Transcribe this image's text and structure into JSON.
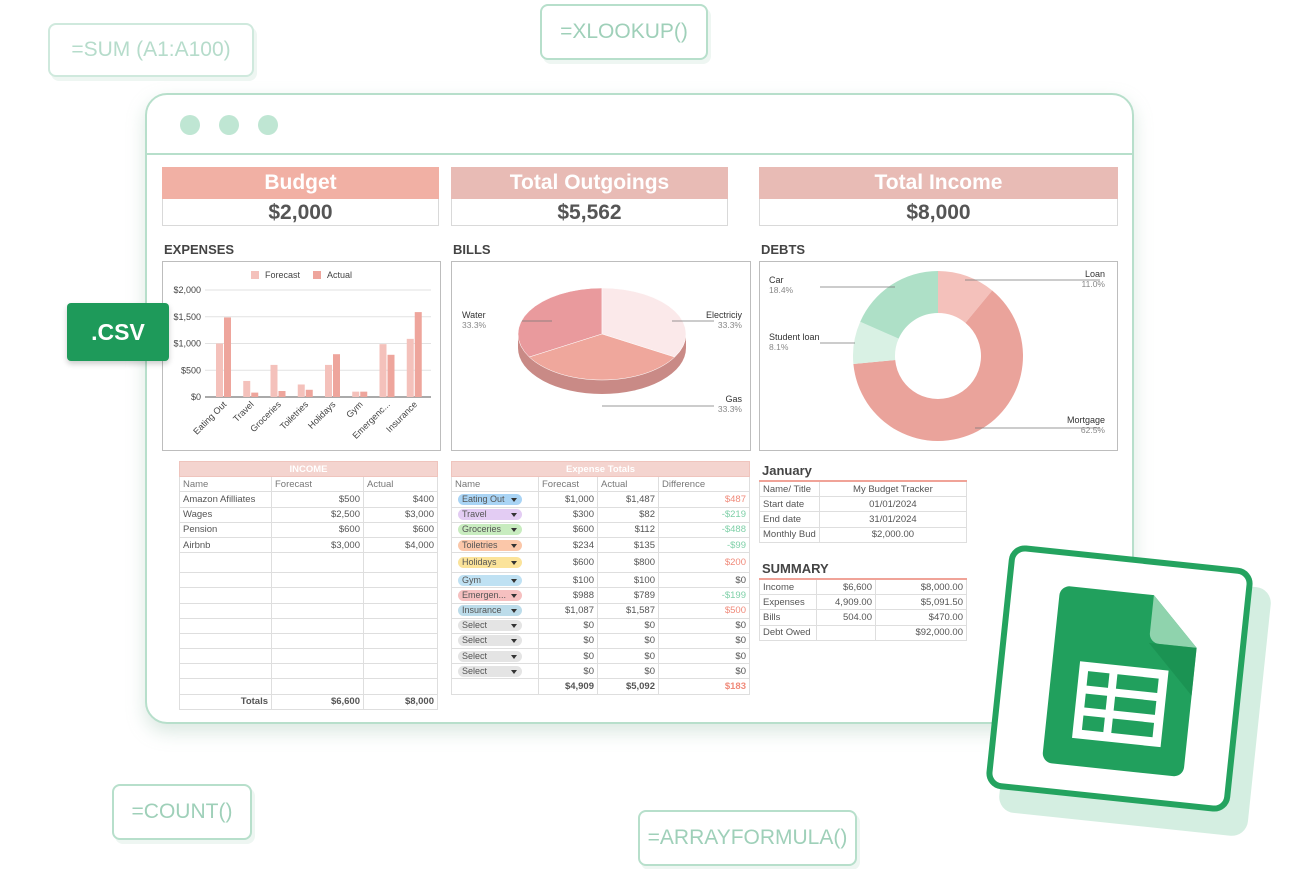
{
  "formulas": {
    "sum": "=SUM (A1:A100)",
    "xlookup": "=XLOOKUP()",
    "count": "=COUNT()",
    "arrayformula": "=ARRAYFORMULA()"
  },
  "csv_badge": ".CSV",
  "cards": [
    {
      "title": "Budget",
      "value": "$2,000"
    },
    {
      "title": "Total Outgoings",
      "value": "$5,562"
    },
    {
      "title": "Total Income",
      "value": "$8,000"
    }
  ],
  "sections": {
    "expenses": "EXPENSES",
    "bills": "BILLS",
    "debts": "DEBTS"
  },
  "chart_data": [
    {
      "type": "bar",
      "title": "EXPENSES",
      "legend": [
        "Forecast",
        "Actual"
      ],
      "legend_position": "top",
      "categories": [
        "Eating Out",
        "Travel",
        "Groceries",
        "Toiletries",
        "Holidays",
        "Gym",
        "Emergenc...",
        "Insurance"
      ],
      "series": [
        {
          "name": "Forecast",
          "values": [
            1000,
            300,
            600,
            234,
            600,
            100,
            988,
            1087
          ],
          "color": "#f4c1bb"
        },
        {
          "name": "Actual",
          "values": [
            1487,
            82,
            112,
            135,
            800,
            100,
            789,
            1587
          ],
          "color": "#eea59c"
        }
      ],
      "yticks": [
        "$0",
        "$500",
        "$1,000",
        "$1,500",
        "$2,000"
      ],
      "ylim": [
        0,
        2000
      ]
    },
    {
      "type": "pie",
      "title": "BILLS",
      "slices": [
        {
          "label": "Water",
          "pct": "33.3%",
          "value": 33.3,
          "color": "#e99a9d"
        },
        {
          "label": "Electriciy",
          "pct": "33.3%",
          "value": 33.3,
          "color": "#fbe9ea"
        },
        {
          "label": "Gas",
          "pct": "33.3%",
          "value": 33.3,
          "color": "#efa79c"
        }
      ]
    },
    {
      "type": "pie",
      "title": "DEBTS",
      "donut": true,
      "slices": [
        {
          "label": "Loan",
          "pct": "11.0%",
          "value": 11.0,
          "color": "#f4c1bb"
        },
        {
          "label": "Mortgage",
          "pct": "62.5%",
          "value": 62.5,
          "color": "#eaa39b"
        },
        {
          "label": "Student loan",
          "pct": "8.1%",
          "value": 8.1,
          "color": "#d9f1e4"
        },
        {
          "label": "Car",
          "pct": "18.4%",
          "value": 18.4,
          "color": "#aee0c7"
        }
      ]
    }
  ],
  "income": {
    "title": "INCOME",
    "headers": [
      "Name",
      "Forecast",
      "Actual"
    ],
    "rows": [
      [
        "Amazon Afilliates",
        "$500",
        "$400"
      ],
      [
        "Wages",
        "$2,500",
        "$3,000"
      ],
      [
        "Pension",
        "$600",
        "$600"
      ],
      [
        "Airbnb",
        "$3,000",
        "$4,000"
      ]
    ],
    "totals": [
      "Totals",
      "$6,600",
      "$8,000"
    ]
  },
  "expense_totals": {
    "title": "Expense Totals",
    "headers": [
      "Name",
      "Forecast",
      "Actual",
      "Difference"
    ],
    "rows": [
      {
        "name": "Eating Out",
        "color": "#a9d4f5",
        "forecast": "$1,000",
        "actual": "$1,487",
        "diff": "$487",
        "sign": "pos"
      },
      {
        "name": "Travel",
        "color": "#e3ccf3",
        "forecast": "$300",
        "actual": "$82",
        "diff": "-$219",
        "sign": "neg"
      },
      {
        "name": "Groceries",
        "color": "#c8ecbf",
        "forecast": "$600",
        "actual": "$112",
        "diff": "-$488",
        "sign": "neg"
      },
      {
        "name": "Toiletries",
        "color": "#fbc7a9",
        "forecast": "$234",
        "actual": "$135",
        "diff": "-$99",
        "sign": "neg"
      },
      {
        "name": "Holidays",
        "color": "#fbe39a",
        "forecast": "$600",
        "actual": "$800",
        "diff": "$200",
        "sign": "pos"
      },
      {
        "name": "Gym",
        "color": "#bfe1f3",
        "forecast": "$100",
        "actual": "$100",
        "diff": "$0",
        "sign": ""
      },
      {
        "name": "Emergen...",
        "color": "#f6c0c0",
        "forecast": "$988",
        "actual": "$789",
        "diff": "-$199",
        "sign": "neg"
      },
      {
        "name": "Insurance",
        "color": "#bcdcea",
        "forecast": "$1,087",
        "actual": "$1,587",
        "diff": "$500",
        "sign": "pos"
      },
      {
        "name": "Select",
        "color": "#e4e4e4",
        "forecast": "$0",
        "actual": "$0",
        "diff": "$0",
        "sign": ""
      },
      {
        "name": "Select",
        "color": "#e4e4e4",
        "forecast": "$0",
        "actual": "$0",
        "diff": "$0",
        "sign": ""
      },
      {
        "name": "Select",
        "color": "#e4e4e4",
        "forecast": "$0",
        "actual": "$0",
        "diff": "$0",
        "sign": ""
      },
      {
        "name": "Select",
        "color": "#e4e4e4",
        "forecast": "$0",
        "actual": "$0",
        "diff": "$0",
        "sign": ""
      }
    ],
    "totals": [
      "$4,909",
      "$5,092",
      "$183"
    ]
  },
  "january": {
    "title": "January",
    "rows": [
      [
        "Name/ Title",
        "My Budget Tracker"
      ],
      [
        "Start date",
        "01/01/2024"
      ],
      [
        "End date",
        "31/01/2024"
      ],
      [
        "Monthly Bud",
        "$2,000.00"
      ]
    ]
  },
  "summary": {
    "title": "SUMMARY",
    "rows": [
      [
        "Income",
        "$6,600",
        "$8,000.00"
      ],
      [
        "Expenses",
        "4,909.00",
        "$5,091.50"
      ],
      [
        "Bills",
        "504.00",
        "$470.00"
      ],
      [
        "Debt Owed",
        "",
        "$92,000.00"
      ]
    ]
  }
}
